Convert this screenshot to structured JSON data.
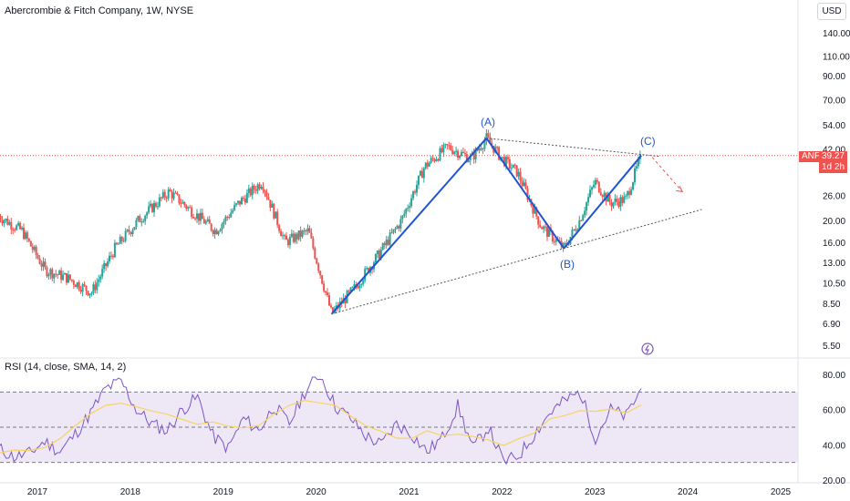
{
  "header": {
    "title": "Abercrombie & Fitch Company, 1W, NYSE",
    "currency": "USD"
  },
  "price_axis": {
    "ticks": [
      "140.00",
      "110.00",
      "90.00",
      "70.00",
      "54.00",
      "42.00",
      "26.00",
      "20.00",
      "16.00",
      "13.00",
      "10.50",
      "8.50",
      "6.90",
      "5.50"
    ]
  },
  "price_tag": {
    "symbol": "ANF",
    "price": "39.27",
    "countdown": "1d 2h"
  },
  "time_axis": {
    "ticks": [
      "2017",
      "2018",
      "2019",
      "2020",
      "2021",
      "2022",
      "2023",
      "2024",
      "2025"
    ]
  },
  "waves": {
    "a": "(A)",
    "b": "(B)",
    "c": "(C)"
  },
  "rsi": {
    "title": "RSI (14, close, SMA, 14, 2)",
    "ticks": [
      "80.00",
      "60.00",
      "40.00",
      "20.00"
    ]
  },
  "colors": {
    "up": "#26a69a",
    "down": "#ef5350",
    "wave": "#1e55d4",
    "rsi": "#7e57c2",
    "rsi_ma": "#f7d460",
    "rsi_band": "#ede7f6"
  },
  "chart_data": {
    "type": "line",
    "title": "Abercrombie & Fitch Company, 1W, NYSE",
    "x_range": [
      "2016-08",
      "2025-06"
    ],
    "y_scale": "log",
    "series": [
      {
        "name": "ANF",
        "x": [
          "2016-08",
          "2016-11",
          "2017-02",
          "2017-05",
          "2017-08",
          "2017-11",
          "2018-02",
          "2018-06",
          "2018-09",
          "2018-12",
          "2019-03",
          "2019-06",
          "2019-09",
          "2019-12",
          "2020-03",
          "2020-06",
          "2020-09",
          "2020-12",
          "2021-03",
          "2021-06",
          "2021-09",
          "2021-11",
          "2022-01",
          "2022-03",
          "2022-06",
          "2022-09",
          "2022-11",
          "2023-01",
          "2023-03",
          "2023-05",
          "2023-07"
        ],
        "values": [
          21,
          18,
          12,
          11,
          9.5,
          15,
          20,
          27,
          22,
          18,
          24,
          30,
          16,
          18,
          7.6,
          10,
          14,
          20,
          35,
          43,
          38,
          47,
          38,
          33,
          19,
          15,
          20,
          30,
          24,
          25,
          39.27
        ]
      }
    ],
    "annotations": [
      {
        "label": "(A)",
        "x": "2021-11",
        "y": 47
      },
      {
        "label": "(B)",
        "x": "2022-09",
        "y": 15
      },
      {
        "label": "(C)",
        "x": "2023-07",
        "y": 39.27
      }
    ],
    "last_price": 39.27
  },
  "rsi_data": {
    "x_range": [
      "2016-08",
      "2025-06"
    ],
    "ylim": [
      20,
      80
    ],
    "levels": [
      70,
      50,
      30
    ],
    "values": [
      38,
      33,
      35,
      42,
      36,
      46,
      58,
      72,
      76,
      60,
      52,
      48,
      60,
      67,
      45,
      38,
      55,
      48,
      62,
      52,
      70,
      80,
      62,
      55,
      45,
      40,
      52,
      46,
      36,
      44,
      62,
      38,
      50,
      30,
      34,
      46,
      58,
      65,
      70,
      44,
      60,
      56,
      72
    ]
  }
}
